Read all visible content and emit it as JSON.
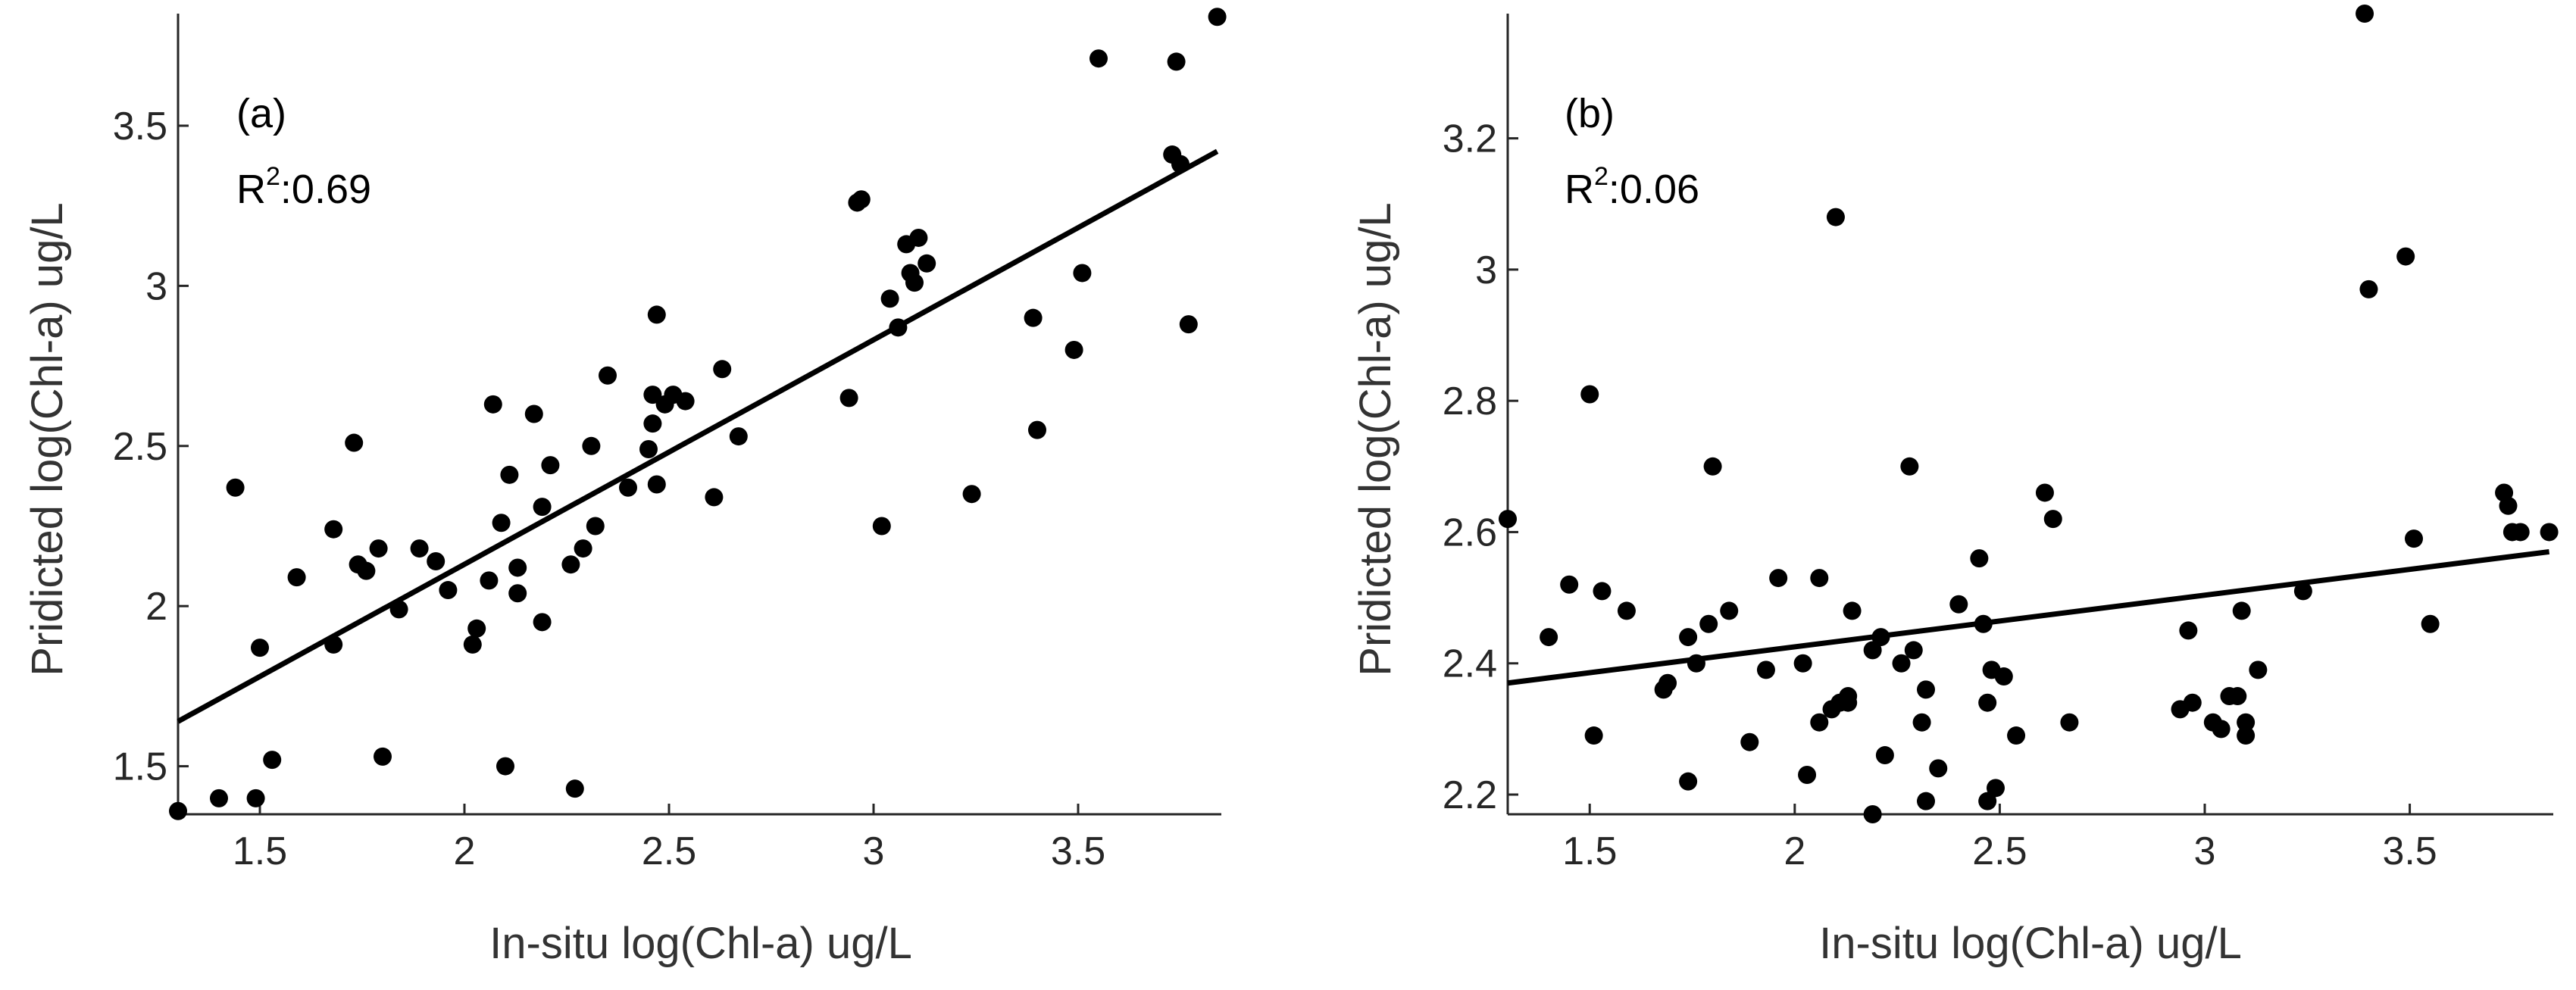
{
  "chart_data": [
    {
      "type": "scatter",
      "panel_label": "(a)",
      "r2_label": "R",
      "r2_sup": "2",
      "r2_value": ":0.69",
      "xlabel": "In-situ log(Chl-a) ug/L",
      "ylabel": "Pridicted log(Chl-a) ug/L",
      "xlim": [
        1.3,
        3.85
      ],
      "ylim": [
        1.35,
        3.85
      ],
      "xticks": [
        1.5,
        2,
        2.5,
        3,
        3.5
      ],
      "xtick_labels": [
        "1.5",
        "2",
        "2.5",
        "3",
        "3.5"
      ],
      "yticks": [
        1.5,
        2,
        2.5,
        3,
        3.5
      ],
      "ytick_labels": [
        "1.5",
        "2",
        "2.5",
        "3",
        "3.5"
      ],
      "fit_line": {
        "x": [
          1.3,
          3.84
        ],
        "y": [
          1.64,
          3.42
        ]
      },
      "points": [
        [
          1.3,
          1.36
        ],
        [
          1.4,
          1.4
        ],
        [
          1.44,
          2.37
        ],
        [
          1.49,
          1.4
        ],
        [
          1.5,
          1.87
        ],
        [
          1.53,
          1.52
        ],
        [
          1.59,
          2.09
        ],
        [
          1.68,
          2.24
        ],
        [
          1.68,
          1.88
        ],
        [
          1.73,
          2.51
        ],
        [
          1.74,
          2.13
        ],
        [
          1.76,
          2.11
        ],
        [
          1.79,
          2.18
        ],
        [
          1.8,
          1.53
        ],
        [
          1.84,
          1.99
        ],
        [
          1.89,
          2.18
        ],
        [
          1.93,
          2.14
        ],
        [
          1.96,
          2.05
        ],
        [
          2.02,
          1.88
        ],
        [
          2.03,
          1.93
        ],
        [
          2.06,
          2.08
        ],
        [
          2.07,
          2.63
        ],
        [
          2.09,
          2.26
        ],
        [
          2.1,
          1.5
        ],
        [
          2.11,
          2.41
        ],
        [
          2.13,
          2.12
        ],
        [
          2.13,
          2.04
        ],
        [
          2.17,
          2.6
        ],
        [
          2.19,
          1.95
        ],
        [
          2.19,
          2.31
        ],
        [
          2.21,
          2.44
        ],
        [
          2.26,
          2.13
        ],
        [
          2.27,
          1.43
        ],
        [
          2.29,
          2.18
        ],
        [
          2.31,
          2.5
        ],
        [
          2.32,
          2.25
        ],
        [
          2.35,
          2.72
        ],
        [
          2.4,
          2.37
        ],
        [
          2.45,
          2.49
        ],
        [
          2.46,
          2.66
        ],
        [
          2.46,
          2.57
        ],
        [
          2.47,
          2.38
        ],
        [
          2.47,
          2.91
        ],
        [
          2.49,
          2.63
        ],
        [
          2.51,
          2.66
        ],
        [
          2.54,
          2.64
        ],
        [
          2.61,
          2.34
        ],
        [
          2.63,
          2.74
        ],
        [
          2.67,
          2.53
        ],
        [
          2.94,
          2.65
        ],
        [
          2.96,
          3.26
        ],
        [
          2.97,
          3.27
        ],
        [
          3.02,
          2.25
        ],
        [
          3.04,
          2.96
        ],
        [
          3.06,
          2.87
        ],
        [
          3.08,
          3.13
        ],
        [
          3.09,
          3.04
        ],
        [
          3.1,
          3.01
        ],
        [
          3.11,
          3.15
        ],
        [
          3.13,
          3.07
        ],
        [
          3.24,
          2.35
        ],
        [
          3.39,
          2.9
        ],
        [
          3.4,
          2.55
        ],
        [
          3.49,
          2.8
        ],
        [
          3.51,
          3.04
        ],
        [
          3.55,
          3.71
        ],
        [
          3.73,
          3.41
        ],
        [
          3.74,
          3.7
        ],
        [
          3.75,
          3.38
        ],
        [
          3.77,
          2.88
        ],
        [
          3.84,
          3.84
        ]
      ]
    },
    {
      "type": "scatter",
      "panel_label": "(b)",
      "r2_label": "R",
      "r2_sup": "2",
      "r2_value": ":0.06",
      "xlabel": "In-situ log(Chl-a) ug/L",
      "ylabel": "Pridicted log(Chl-a) ug/L",
      "xlim": [
        1.3,
        3.85
      ],
      "ylim": [
        2.17,
        3.39
      ],
      "xticks": [
        1.5,
        2,
        2.5,
        3,
        3.5
      ],
      "xtick_labels": [
        "1.5",
        "2",
        "2.5",
        "3",
        "3.5"
      ],
      "yticks": [
        2.2,
        2.4,
        2.6,
        2.8,
        3,
        3.2
      ],
      "ytick_labels": [
        "2.2",
        "2.4",
        "2.6",
        "2.8",
        "3",
        "3.2"
      ],
      "fit_line": {
        "x": [
          1.3,
          3.84
        ],
        "y": [
          2.37,
          2.57
        ]
      },
      "points": [
        [
          1.3,
          2.62
        ],
        [
          1.4,
          2.44
        ],
        [
          1.45,
          2.52
        ],
        [
          1.5,
          2.81
        ],
        [
          1.51,
          2.29
        ],
        [
          1.53,
          2.51
        ],
        [
          1.59,
          2.48
        ],
        [
          1.68,
          2.36
        ],
        [
          1.69,
          2.37
        ],
        [
          1.74,
          2.44
        ],
        [
          1.74,
          2.22
        ],
        [
          1.76,
          2.4
        ],
        [
          1.79,
          2.46
        ],
        [
          1.8,
          2.7
        ],
        [
          1.84,
          2.48
        ],
        [
          1.89,
          2.28
        ],
        [
          1.93,
          2.39
        ],
        [
          1.96,
          2.53
        ],
        [
          2.02,
          2.4
        ],
        [
          2.03,
          2.23
        ],
        [
          2.06,
          2.53
        ],
        [
          2.06,
          2.31
        ],
        [
          2.09,
          2.33
        ],
        [
          2.1,
          3.08
        ],
        [
          2.11,
          2.34
        ],
        [
          2.13,
          2.35
        ],
        [
          2.13,
          2.34
        ],
        [
          2.14,
          2.48
        ],
        [
          2.19,
          2.42
        ],
        [
          2.19,
          2.17
        ],
        [
          2.21,
          2.44
        ],
        [
          2.22,
          2.26
        ],
        [
          2.26,
          2.4
        ],
        [
          2.28,
          2.7
        ],
        [
          2.29,
          2.42
        ],
        [
          2.31,
          2.31
        ],
        [
          2.32,
          2.36
        ],
        [
          2.32,
          2.19
        ],
        [
          2.35,
          2.24
        ],
        [
          2.4,
          2.49
        ],
        [
          2.45,
          2.56
        ],
        [
          2.46,
          2.46
        ],
        [
          2.47,
          2.34
        ],
        [
          2.47,
          2.19
        ],
        [
          2.48,
          2.39
        ],
        [
          2.49,
          2.21
        ],
        [
          2.51,
          2.38
        ],
        [
          2.54,
          2.29
        ],
        [
          2.61,
          2.66
        ],
        [
          2.63,
          2.62
        ],
        [
          2.67,
          2.31
        ],
        [
          2.94,
          2.33
        ],
        [
          2.96,
          2.45
        ],
        [
          2.97,
          2.34
        ],
        [
          3.02,
          2.31
        ],
        [
          3.04,
          2.3
        ],
        [
          3.06,
          2.35
        ],
        [
          3.08,
          2.35
        ],
        [
          3.09,
          2.48
        ],
        [
          3.1,
          2.29
        ],
        [
          3.1,
          2.31
        ],
        [
          3.13,
          2.39
        ],
        [
          3.24,
          2.51
        ],
        [
          3.39,
          3.39
        ],
        [
          3.4,
          2.97
        ],
        [
          3.49,
          3.02
        ],
        [
          3.51,
          2.59
        ],
        [
          3.55,
          2.46
        ],
        [
          3.73,
          2.66
        ],
        [
          3.74,
          2.64
        ],
        [
          3.75,
          2.6
        ],
        [
          3.77,
          2.6
        ],
        [
          3.84,
          2.6
        ]
      ]
    }
  ]
}
